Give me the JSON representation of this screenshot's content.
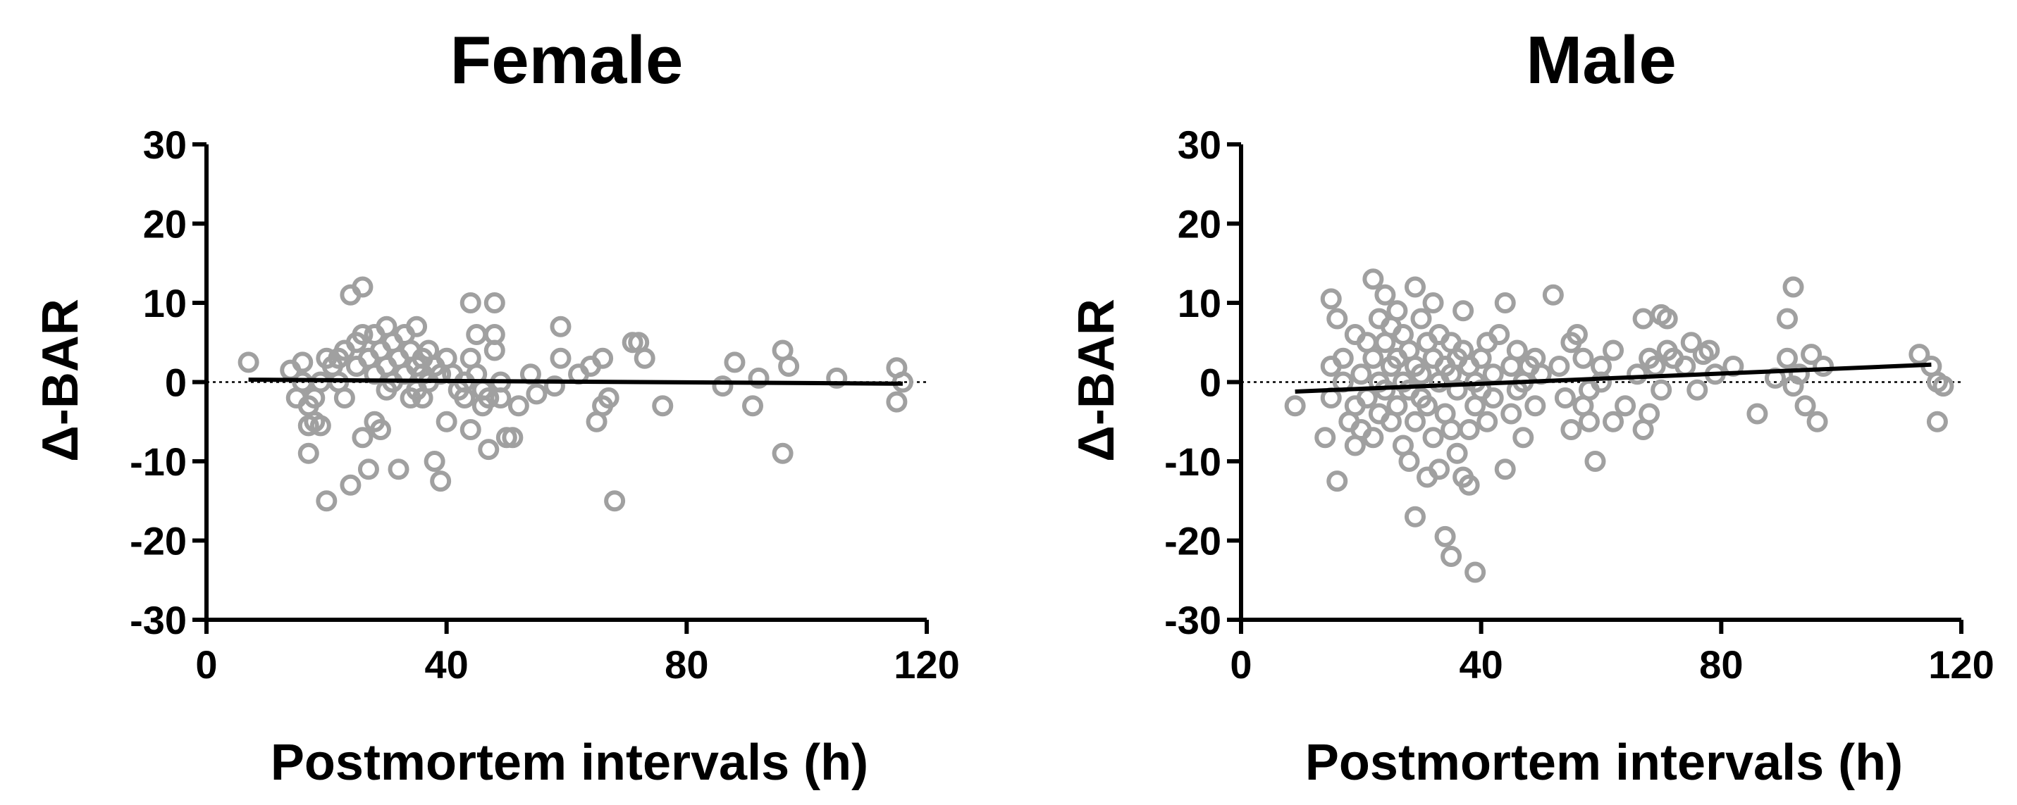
{
  "chart_data": [
    {
      "type": "scatter",
      "title": "Female",
      "xlabel": "Postmortem intervals (h)",
      "ylabel": "Δ-BAR",
      "xlim": [
        0,
        120
      ],
      "ylim": [
        -30,
        30
      ],
      "xticks": [
        0,
        40,
        80,
        120
      ],
      "yticks": [
        -30,
        -20,
        -10,
        0,
        10,
        20,
        30
      ],
      "zero_reference_line": true,
      "point_color": "#a0a0a0",
      "fit_line": {
        "x": [
          7,
          116
        ],
        "y": [
          0.3,
          -0.2
        ]
      },
      "points": [
        [
          7,
          2.5
        ],
        [
          14,
          1.5
        ],
        [
          15,
          -2
        ],
        [
          16,
          2.5
        ],
        [
          16,
          0
        ],
        [
          17,
          -3
        ],
        [
          17,
          -5.5
        ],
        [
          18,
          -5
        ],
        [
          17,
          -9
        ],
        [
          19,
          -5.5
        ],
        [
          18,
          -2
        ],
        [
          19,
          0
        ],
        [
          20,
          -15
        ],
        [
          20,
          3
        ],
        [
          21,
          2
        ],
        [
          22,
          3
        ],
        [
          22,
          0
        ],
        [
          23,
          -2
        ],
        [
          23,
          4
        ],
        [
          24,
          11
        ],
        [
          24,
          -13
        ],
        [
          25,
          5
        ],
        [
          25,
          2
        ],
        [
          26,
          12
        ],
        [
          26,
          6
        ],
        [
          26,
          -7
        ],
        [
          27,
          3
        ],
        [
          27,
          -11
        ],
        [
          28,
          -5
        ],
        [
          28,
          6
        ],
        [
          28,
          1
        ],
        [
          29,
          4
        ],
        [
          29,
          -6
        ],
        [
          30,
          7
        ],
        [
          30,
          2
        ],
        [
          30,
          -1
        ],
        [
          31,
          5
        ],
        [
          31,
          0
        ],
        [
          32,
          3
        ],
        [
          32,
          -11
        ],
        [
          33,
          6
        ],
        [
          33,
          1
        ],
        [
          34,
          -2
        ],
        [
          34,
          4
        ],
        [
          35,
          7
        ],
        [
          35,
          -1
        ],
        [
          35,
          2
        ],
        [
          36,
          3
        ],
        [
          36,
          1
        ],
        [
          36,
          -2
        ],
        [
          37,
          0
        ],
        [
          37,
          4
        ],
        [
          38,
          2
        ],
        [
          38,
          -10
        ],
        [
          39,
          -12.5
        ],
        [
          39,
          1
        ],
        [
          40,
          3
        ],
        [
          40,
          -5
        ],
        [
          41,
          1
        ],
        [
          42,
          -1
        ],
        [
          43,
          -2
        ],
        [
          43,
          0
        ],
        [
          44,
          3
        ],
        [
          44,
          10
        ],
        [
          44,
          -6
        ],
        [
          45,
          1
        ],
        [
          45,
          6
        ],
        [
          46,
          -1
        ],
        [
          46,
          -3
        ],
        [
          47,
          -8.5
        ],
        [
          47,
          -2
        ],
        [
          48,
          10
        ],
        [
          48,
          4
        ],
        [
          48,
          6
        ],
        [
          49,
          -2
        ],
        [
          49,
          0
        ],
        [
          50,
          -7
        ],
        [
          51,
          -7
        ],
        [
          52,
          -3
        ],
        [
          54,
          1
        ],
        [
          55,
          -1.5
        ],
        [
          58,
          -0.5
        ],
        [
          59,
          7
        ],
        [
          59,
          3
        ],
        [
          62,
          1
        ],
        [
          64,
          2
        ],
        [
          65,
          -5
        ],
        [
          66,
          3
        ],
        [
          66,
          -3
        ],
        [
          67,
          -2
        ],
        [
          68,
          -15
        ],
        [
          71,
          5
        ],
        [
          72,
          5
        ],
        [
          73,
          3
        ],
        [
          76,
          -3
        ],
        [
          86,
          -0.5
        ],
        [
          88,
          2.5
        ],
        [
          91,
          -3
        ],
        [
          92,
          0.5
        ],
        [
          96,
          -9
        ],
        [
          96,
          4
        ],
        [
          97,
          2
        ],
        [
          105,
          0.5
        ],
        [
          115,
          1.8
        ],
        [
          116,
          0
        ],
        [
          115,
          -2.5
        ]
      ]
    },
    {
      "type": "scatter",
      "title": "Male",
      "xlabel": "Postmortem intervals (h)",
      "ylabel": "Δ-BAR",
      "xlim": [
        0,
        120
      ],
      "ylim": [
        -30,
        30
      ],
      "xticks": [
        0,
        40,
        80,
        120
      ],
      "yticks": [
        -30,
        -20,
        -10,
        0,
        10,
        20,
        30
      ],
      "zero_reference_line": true,
      "point_color": "#a0a0a0",
      "fit_line": {
        "x": [
          9,
          115
        ],
        "y": [
          -1.2,
          2.2
        ]
      },
      "points": [
        [
          9,
          -3
        ],
        [
          14,
          -7
        ],
        [
          15,
          10.5
        ],
        [
          15,
          -2
        ],
        [
          15,
          2
        ],
        [
          16,
          8
        ],
        [
          16,
          -12.5
        ],
        [
          17,
          3
        ],
        [
          17,
          0
        ],
        [
          18,
          -5
        ],
        [
          19,
          6
        ],
        [
          19,
          -8
        ],
        [
          19,
          -3
        ],
        [
          20,
          1
        ],
        [
          20,
          -6
        ],
        [
          21,
          5
        ],
        [
          21,
          -2
        ],
        [
          22,
          13
        ],
        [
          22,
          3
        ],
        [
          22,
          -7
        ],
        [
          23,
          8
        ],
        [
          23,
          0
        ],
        [
          23,
          -4
        ],
        [
          24,
          11
        ],
        [
          24,
          5
        ],
        [
          24,
          -1
        ],
        [
          25,
          -5
        ],
        [
          25,
          2
        ],
        [
          25,
          7
        ],
        [
          26,
          3
        ],
        [
          26,
          -3
        ],
        [
          26,
          9
        ],
        [
          27,
          0
        ],
        [
          27,
          -8
        ],
        [
          27,
          6
        ],
        [
          28,
          -1
        ],
        [
          28,
          4
        ],
        [
          28,
          -10
        ],
        [
          29,
          12
        ],
        [
          29,
          2
        ],
        [
          29,
          -5
        ],
        [
          29,
          -17
        ],
        [
          30,
          8
        ],
        [
          30,
          -2
        ],
        [
          30,
          1
        ],
        [
          31,
          5
        ],
        [
          31,
          -3
        ],
        [
          31,
          -12
        ],
        [
          32,
          3
        ],
        [
          32,
          -7
        ],
        [
          32,
          10
        ],
        [
          33,
          0
        ],
        [
          33,
          -11
        ],
        [
          33,
          6
        ],
        [
          34,
          2
        ],
        [
          34,
          -4
        ],
        [
          34,
          -19.5
        ],
        [
          35,
          5
        ],
        [
          35,
          -6
        ],
        [
          35,
          -22
        ],
        [
          35,
          1
        ],
        [
          36,
          3
        ],
        [
          36,
          -9
        ],
        [
          36,
          -1
        ],
        [
          37,
          -12
        ],
        [
          37,
          4
        ],
        [
          37,
          9
        ],
        [
          38,
          2
        ],
        [
          38,
          -6
        ],
        [
          38,
          -13
        ],
        [
          39,
          0
        ],
        [
          39,
          -24
        ],
        [
          39,
          -3
        ],
        [
          40,
          3
        ],
        [
          40,
          -1
        ],
        [
          41,
          5
        ],
        [
          41,
          -5
        ],
        [
          42,
          1
        ],
        [
          42,
          -2
        ],
        [
          43,
          6
        ],
        [
          44,
          -11
        ],
        [
          44,
          10
        ],
        [
          45,
          2
        ],
        [
          45,
          -4
        ],
        [
          46,
          4
        ],
        [
          46,
          -1
        ],
        [
          47,
          -7
        ],
        [
          47,
          0
        ],
        [
          48,
          2
        ],
        [
          49,
          -3
        ],
        [
          49,
          3
        ],
        [
          50,
          1
        ],
        [
          52,
          11
        ],
        [
          53,
          2
        ],
        [
          54,
          -2
        ],
        [
          55,
          5
        ],
        [
          55,
          -6
        ],
        [
          56,
          6
        ],
        [
          57,
          -3
        ],
        [
          57,
          3
        ],
        [
          58,
          -1
        ],
        [
          58,
          -5
        ],
        [
          59,
          -10
        ],
        [
          60,
          2
        ],
        [
          60,
          0
        ],
        [
          62,
          4
        ],
        [
          62,
          -5
        ],
        [
          64,
          -3
        ],
        [
          66,
          1
        ],
        [
          67,
          8
        ],
        [
          67,
          -6
        ],
        [
          68,
          3
        ],
        [
          68,
          -4
        ],
        [
          69,
          2
        ],
        [
          70,
          8.5
        ],
        [
          70,
          -1
        ],
        [
          71,
          4
        ],
        [
          71,
          8
        ],
        [
          72,
          3
        ],
        [
          74,
          2
        ],
        [
          75,
          5
        ],
        [
          76,
          -1
        ],
        [
          77,
          3.5
        ],
        [
          78,
          4
        ],
        [
          79,
          1
        ],
        [
          82,
          2
        ],
        [
          86,
          -4
        ],
        [
          89,
          0.5
        ],
        [
          91,
          8
        ],
        [
          91,
          3
        ],
        [
          92,
          -0.5
        ],
        [
          92,
          12
        ],
        [
          93,
          1
        ],
        [
          94,
          -3
        ],
        [
          95,
          3.5
        ],
        [
          96,
          -5
        ],
        [
          97,
          2
        ],
        [
          113,
          3.5
        ],
        [
          115,
          2
        ],
        [
          116,
          0
        ],
        [
          116,
          -5
        ],
        [
          117,
          -0.5
        ]
      ]
    }
  ]
}
